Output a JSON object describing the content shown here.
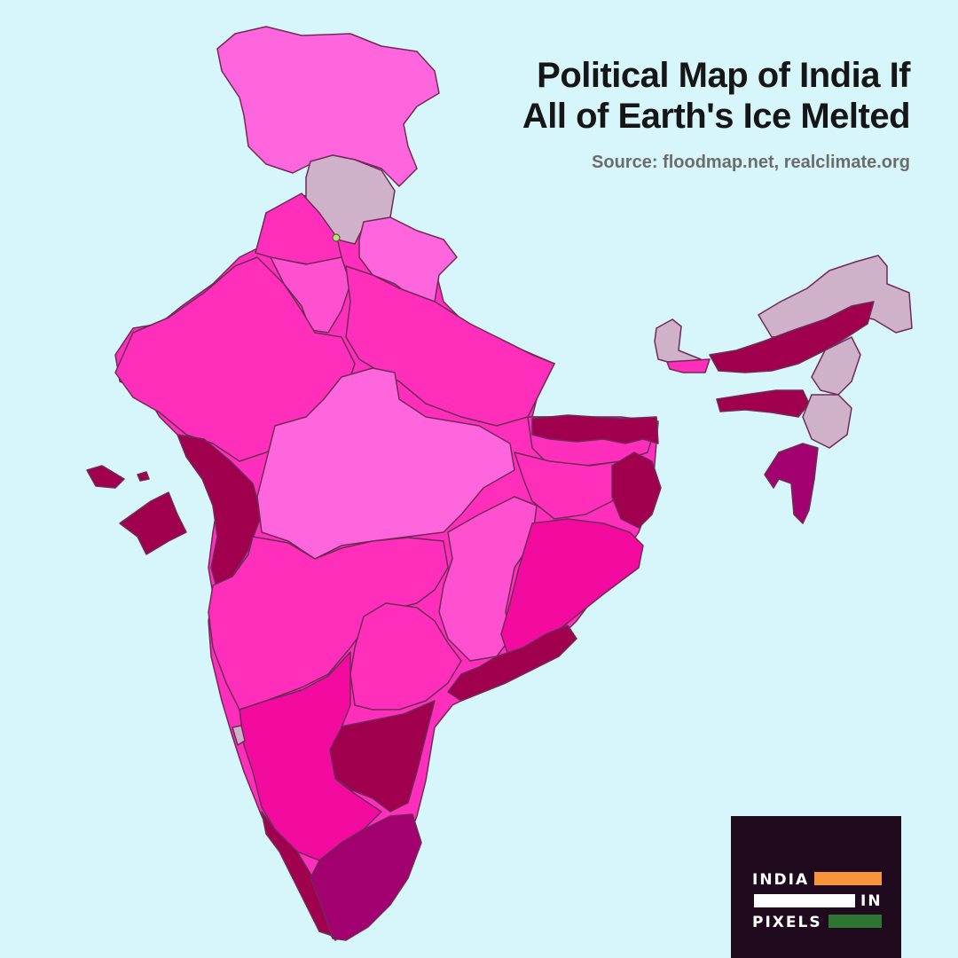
{
  "title": {
    "line1": "Political Map of India If",
    "line2": "All of Earth's Ice Melted"
  },
  "source": "Source: floodmap.net, realclimate.org",
  "logo": {
    "word1": "INDIA",
    "word2": "IN",
    "word3": "PIXELS",
    "colors": {
      "saffron": "#f7953a",
      "white": "#ffffff",
      "green": "#2e7433",
      "background": "#200a1e"
    }
  },
  "legend_colors": {
    "sea": "#d6f6fb",
    "light_pink": "#ff66dd",
    "hot_pink": "#ff2ebb",
    "magenta": "#f20b9e",
    "crimson": "#a0004e",
    "plum": "#a30070",
    "mauve_grey": "#cfb1c9"
  }
}
